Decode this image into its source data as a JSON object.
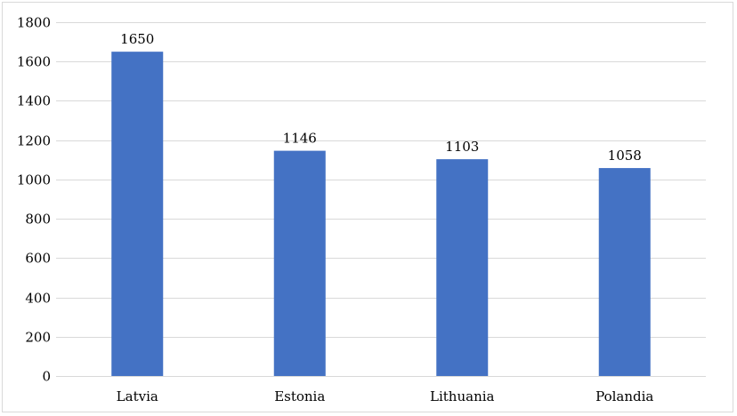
{
  "chart_data": {
    "type": "bar",
    "title": "",
    "xlabel": "",
    "ylabel": "",
    "categories": [
      "Latvia",
      "Estonia",
      "Lithuania",
      "Polandia"
    ],
    "values": [
      1650,
      1146,
      1103,
      1058
    ],
    "data_labels": [
      "1650",
      "1146",
      "1103",
      "1058"
    ],
    "ylim": [
      0,
      1800
    ],
    "yticks": [
      0,
      200,
      400,
      600,
      800,
      1000,
      1200,
      1400,
      1600,
      1800
    ],
    "ytick_labels": [
      "0",
      "200",
      "400",
      "600",
      "800",
      "1000",
      "1200",
      "1400",
      "1600",
      "1800"
    ],
    "grid": true,
    "legend": "none",
    "bar_color": "#4472c4"
  }
}
